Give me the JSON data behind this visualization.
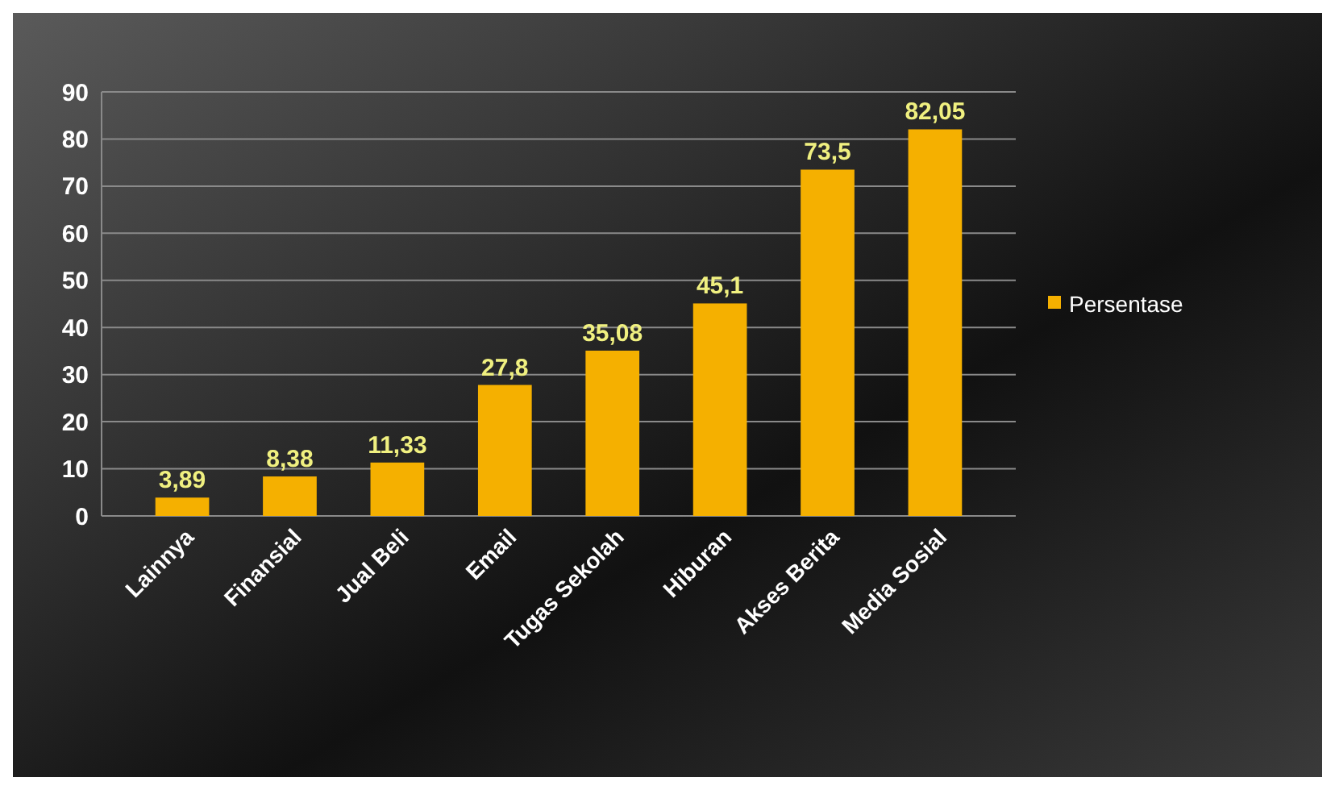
{
  "chart_data": {
    "type": "bar",
    "categories": [
      "Lainnya",
      "Finansial",
      "Jual Beli",
      "Email",
      "Tugas Sekolah",
      "Hiburan",
      "Akses Berita",
      "Media Sosial"
    ],
    "series": [
      {
        "name": "Persentase",
        "color": "#f5b000",
        "values": [
          3.89,
          8.38,
          11.33,
          27.8,
          35.08,
          45.1,
          73.5,
          82.05
        ],
        "value_labels": [
          "3,89",
          "8,38",
          "11,33",
          "27,8",
          "35,08",
          "45,1",
          "73,5",
          "82,05"
        ]
      }
    ],
    "ylim": [
      0,
      90
    ],
    "yticks": [
      0,
      10,
      20,
      30,
      40,
      50,
      60,
      70,
      80,
      90
    ],
    "grid": "y",
    "legend": "right"
  }
}
